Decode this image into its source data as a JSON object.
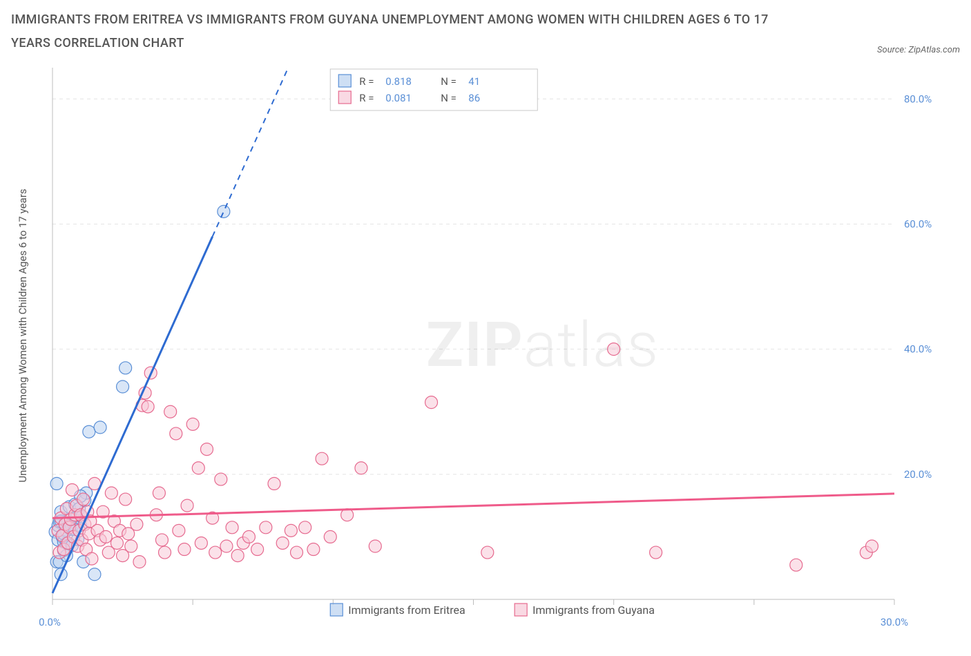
{
  "title": "IMMIGRANTS FROM ERITREA VS IMMIGRANTS FROM GUYANA UNEMPLOYMENT AMONG WOMEN WITH CHILDREN AGES 6 TO 17 YEARS CORRELATION CHART",
  "source_prefix": "Source: ",
  "source_name": "ZipAtlas.com",
  "watermark_bold": "ZIP",
  "watermark_thin": "atlas",
  "chart": {
    "type": "scatter",
    "background_color": "#ffffff",
    "grid_color": "#e4e4e4",
    "axis_color": "#bcbcbc",
    "tick_label_color": "#5a8fd6",
    "xlim": [
      0,
      30
    ],
    "ylim": [
      0,
      85
    ],
    "x_ticks": [
      0,
      5,
      10,
      15,
      20,
      25,
      30
    ],
    "x_tick_labels": [
      "0.0%",
      "",
      "",
      "",
      "",
      "",
      "30.0%"
    ],
    "y_ticks": [
      20,
      40,
      60,
      80
    ],
    "y_tick_labels": [
      "20.0%",
      "40.0%",
      "60.0%",
      "80.0%"
    ],
    "y_axis_title": "Unemployment Among Women with Children Ages 6 to 17 years",
    "series": [
      {
        "key": "eritrea",
        "label": "Immigrants from Eritrea",
        "marker_stroke": "#5a8fd6",
        "marker_fill": "#b9d1f0",
        "marker_fill_opacity": 0.55,
        "marker_radius": 9,
        "line_color": "#2e6bd1",
        "line_width": 3,
        "dash_after_x": 5.7,
        "R": "0.818",
        "N": "41",
        "trend": {
          "x0": 0,
          "y0": 1.0,
          "slope": 10.0
        },
        "points": [
          [
            0.1,
            10.8
          ],
          [
            0.15,
            6.0
          ],
          [
            0.2,
            9.5
          ],
          [
            0.2,
            11.8
          ],
          [
            0.25,
            12.4
          ],
          [
            0.3,
            14.0
          ],
          [
            0.3,
            4.0
          ],
          [
            0.35,
            10.0
          ],
          [
            0.4,
            7.8
          ],
          [
            0.4,
            9.2
          ],
          [
            0.45,
            12.2
          ],
          [
            0.5,
            11.0
          ],
          [
            0.5,
            9.0
          ],
          [
            0.55,
            12.6
          ],
          [
            0.6,
            14.8
          ],
          [
            0.65,
            11.2
          ],
          [
            0.7,
            8.6
          ],
          [
            0.75,
            12.0
          ],
          [
            0.8,
            15.2
          ],
          [
            0.85,
            13.0
          ],
          [
            0.9,
            9.6
          ],
          [
            0.95,
            14.5
          ],
          [
            1.0,
            11.8
          ],
          [
            1.05,
            13.2
          ],
          [
            1.1,
            6.0
          ],
          [
            1.15,
            15.8
          ],
          [
            1.2,
            17.0
          ],
          [
            1.3,
            26.8
          ],
          [
            1.5,
            4.0
          ],
          [
            1.7,
            27.5
          ],
          [
            2.5,
            34.0
          ],
          [
            2.6,
            37.0
          ],
          [
            6.1,
            62.0
          ],
          [
            0.15,
            18.5
          ],
          [
            0.25,
            6.0
          ],
          [
            0.3,
            12.5
          ],
          [
            0.4,
            10.5
          ],
          [
            0.5,
            7.0
          ],
          [
            0.6,
            11.8
          ],
          [
            0.8,
            11.2
          ],
          [
            1.0,
            16.5
          ]
        ]
      },
      {
        "key": "guyana",
        "label": "Immigrants from Guyana",
        "marker_stroke": "#e66a8f",
        "marker_fill": "#f7c9d7",
        "marker_fill_opacity": 0.55,
        "marker_radius": 9,
        "line_color": "#ef5b8a",
        "line_width": 3,
        "dash_after_x": 999,
        "R": "0.081",
        "N": "86",
        "trend": {
          "x0": 0,
          "y0": 13.0,
          "slope": 0.13
        },
        "points": [
          [
            0.2,
            11.0
          ],
          [
            0.25,
            7.5
          ],
          [
            0.3,
            13.0
          ],
          [
            0.35,
            10.2
          ],
          [
            0.4,
            8.0
          ],
          [
            0.45,
            12.0
          ],
          [
            0.5,
            14.5
          ],
          [
            0.55,
            9.0
          ],
          [
            0.6,
            11.5
          ],
          [
            0.65,
            12.8
          ],
          [
            0.7,
            17.5
          ],
          [
            0.75,
            10.0
          ],
          [
            0.8,
            13.5
          ],
          [
            0.85,
            15.0
          ],
          [
            0.9,
            8.5
          ],
          [
            0.95,
            11.0
          ],
          [
            1.0,
            13.5
          ],
          [
            1.05,
            9.5
          ],
          [
            1.1,
            16.0
          ],
          [
            1.15,
            12.0
          ],
          [
            1.2,
            8.0
          ],
          [
            1.25,
            14.0
          ],
          [
            1.3,
            10.5
          ],
          [
            1.35,
            12.5
          ],
          [
            1.4,
            6.5
          ],
          [
            1.5,
            18.5
          ],
          [
            1.6,
            11.0
          ],
          [
            1.7,
            9.5
          ],
          [
            1.8,
            14.0
          ],
          [
            1.9,
            10.0
          ],
          [
            2.0,
            7.5
          ],
          [
            2.1,
            17.0
          ],
          [
            2.2,
            12.5
          ],
          [
            2.3,
            9.0
          ],
          [
            2.4,
            11.0
          ],
          [
            2.5,
            7.0
          ],
          [
            2.6,
            16.0
          ],
          [
            2.7,
            10.5
          ],
          [
            2.8,
            8.5
          ],
          [
            3.0,
            12.0
          ],
          [
            3.1,
            6.0
          ],
          [
            3.2,
            31.0
          ],
          [
            3.3,
            33.0
          ],
          [
            3.4,
            30.8
          ],
          [
            3.5,
            36.2
          ],
          [
            3.7,
            13.5
          ],
          [
            3.8,
            17.0
          ],
          [
            3.9,
            9.5
          ],
          [
            4.0,
            7.5
          ],
          [
            4.2,
            30.0
          ],
          [
            4.4,
            26.5
          ],
          [
            4.5,
            11.0
          ],
          [
            4.7,
            8.0
          ],
          [
            4.8,
            15.0
          ],
          [
            5.0,
            28.0
          ],
          [
            5.2,
            21.0
          ],
          [
            5.3,
            9.0
          ],
          [
            5.5,
            24.0
          ],
          [
            5.7,
            13.0
          ],
          [
            5.8,
            7.5
          ],
          [
            6.0,
            19.2
          ],
          [
            6.2,
            8.5
          ],
          [
            6.4,
            11.5
          ],
          [
            6.6,
            7.0
          ],
          [
            6.8,
            9.0
          ],
          [
            7.0,
            10.0
          ],
          [
            7.3,
            8.0
          ],
          [
            7.6,
            11.5
          ],
          [
            7.9,
            18.5
          ],
          [
            8.2,
            9.0
          ],
          [
            8.5,
            11.0
          ],
          [
            8.7,
            7.5
          ],
          [
            9.0,
            11.5
          ],
          [
            9.3,
            8.0
          ],
          [
            9.6,
            22.5
          ],
          [
            9.9,
            10.0
          ],
          [
            10.5,
            13.5
          ],
          [
            11.0,
            21.0
          ],
          [
            11.5,
            8.5
          ],
          [
            13.5,
            31.5
          ],
          [
            15.5,
            7.5
          ],
          [
            20.0,
            40.0
          ],
          [
            21.5,
            7.5
          ],
          [
            26.5,
            5.5
          ],
          [
            29.0,
            7.5
          ],
          [
            29.2,
            8.5
          ]
        ]
      }
    ]
  },
  "legend_box": {
    "R_label": "R =",
    "N_label": "N ="
  }
}
